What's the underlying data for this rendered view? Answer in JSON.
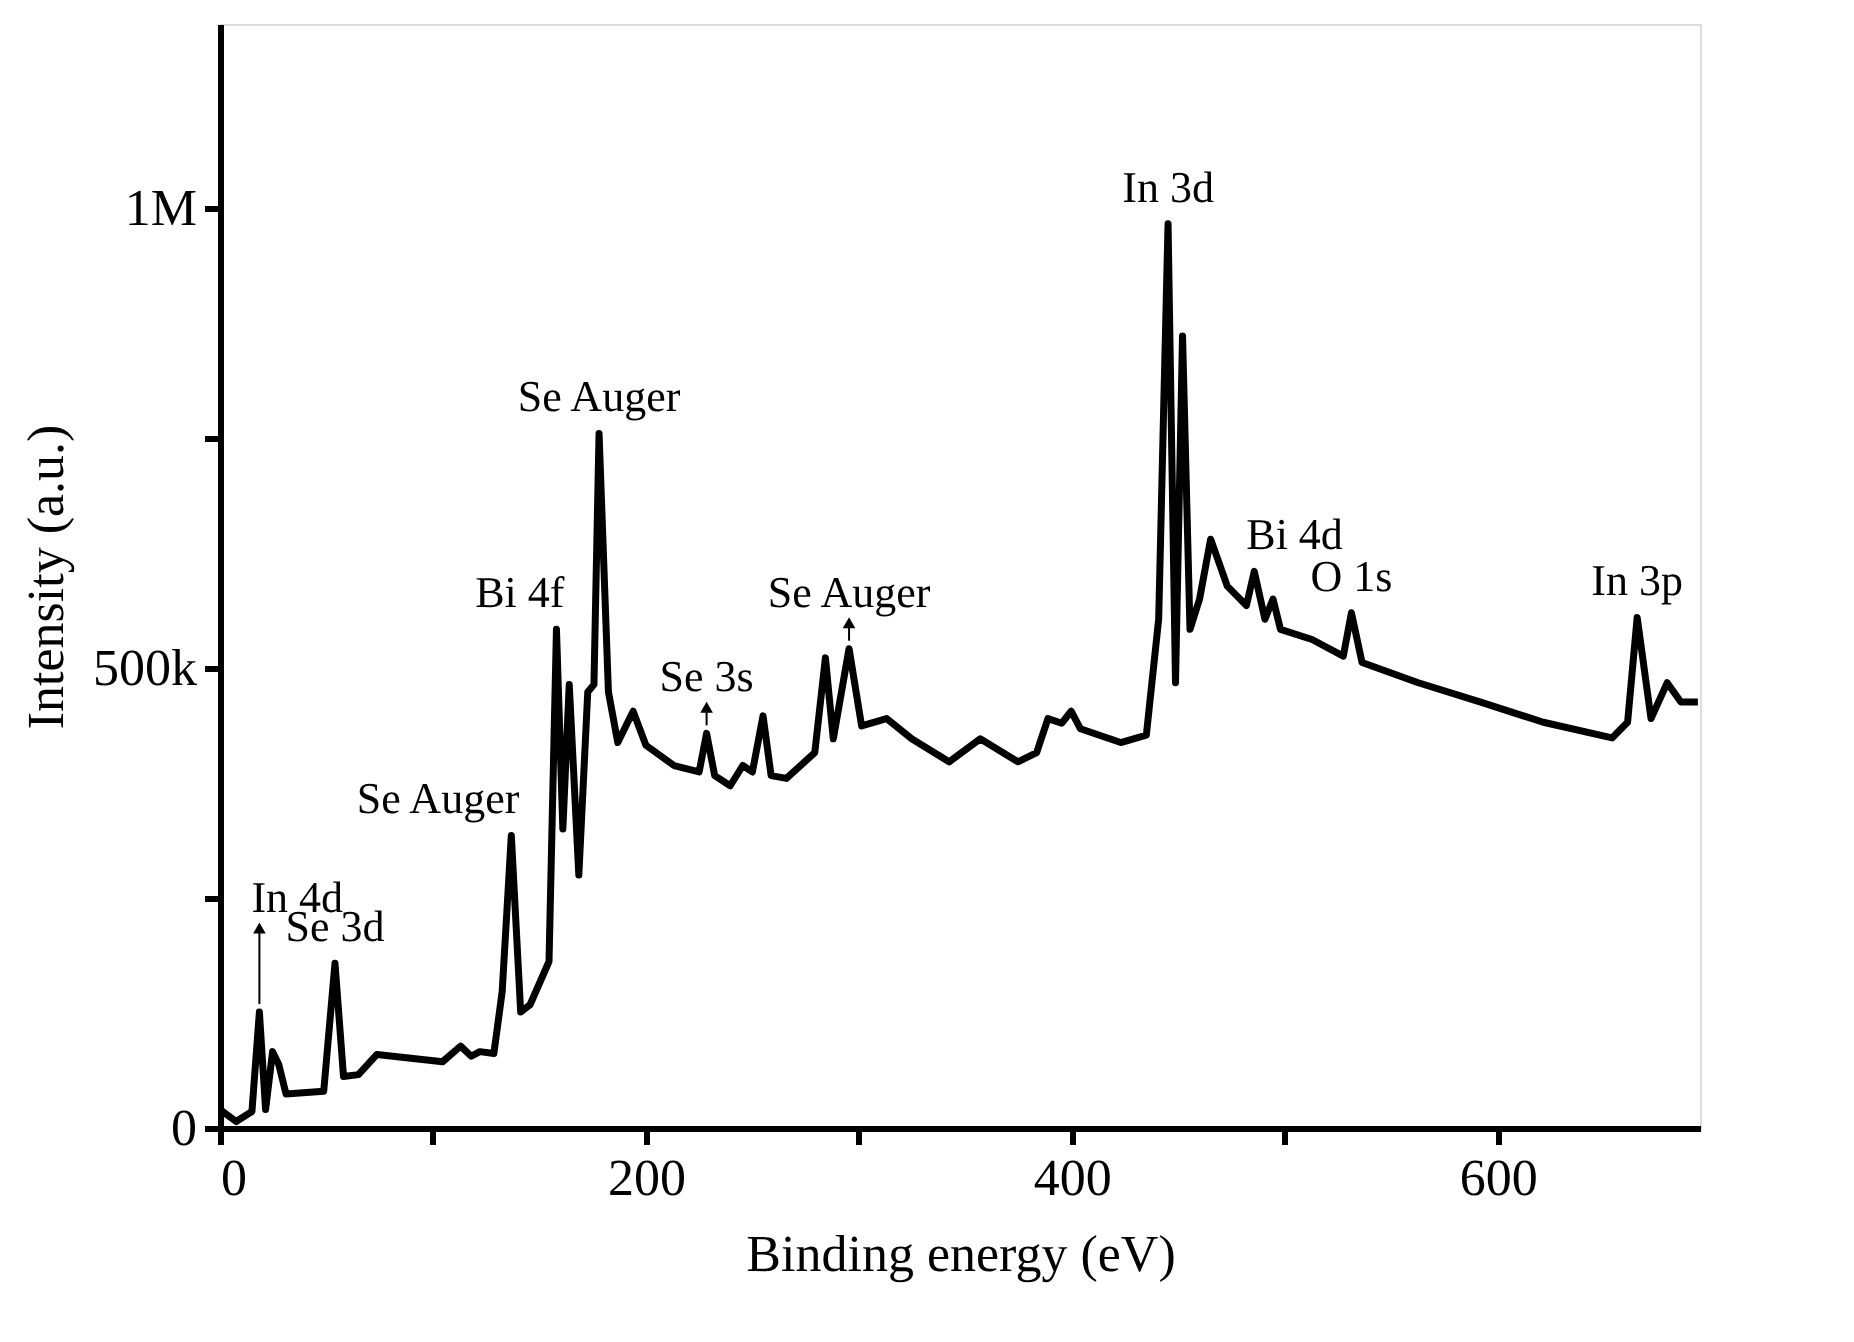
{
  "chart_data": {
    "type": "line",
    "xlabel": "Binding energy (eV)",
    "ylabel": "Intensity (a.u.)",
    "xlim": [
      0,
      695
    ],
    "ylim": [
      0,
      1200000
    ],
    "xticks": [
      0,
      {
        "value": 100,
        "label": null
      },
      200,
      {
        "value": 300,
        "label": null
      },
      400,
      {
        "value": 500,
        "label": null
      },
      600
    ],
    "yticks": [
      0,
      {
        "value": 250000,
        "label": null
      },
      {
        "value": 500000,
        "label": "500k"
      },
      {
        "value": 750000,
        "label": null
      },
      {
        "value": 1000000,
        "label": "1M"
      }
    ],
    "grid": false,
    "marker": "none",
    "line_style": "solid",
    "series": [
      {
        "color": "#000000",
        "x": [
          0,
          7.6,
          15,
          18.5,
          21.4,
          24.7,
          27.6,
          31,
          48.7,
          54,
          58,
          65,
          73.7,
          104.5,
          113,
          118,
          122,
          128.6,
          132.5,
          136.8,
          141.2,
          145.6,
          154.5,
          158,
          161,
          164,
          168.5,
          172.7,
          175.6,
          178,
          182.4,
          186.8,
          194,
          200,
          213.2,
          225,
          228.5,
          232.3,
          239.6,
          245.5,
          250,
          255,
          258.8,
          266,
          279.3,
          284.3,
          288,
          295.4,
          301.3,
          313,
          324.8,
          342.4,
          357,
          374.7,
          383.5,
          388.8,
          395.3,
          399.7,
          404,
          423,
          435,
          440.8,
          445.2,
          448.7,
          452,
          455.5,
          460,
          465.2,
          473,
          482,
          485.7,
          490.7,
          494.5,
          498,
          512.8,
          527.5,
          531.3,
          536.3,
          562.7,
          592,
          621.4,
          653.7,
          661,
          665.5,
          672,
          679.6,
          686,
          694
        ],
        "values": [
          20000,
          7000,
          18000,
          126000,
          20000,
          83000,
          69000,
          37000,
          40000,
          179000,
          56000,
          58000,
          80000,
          72000,
          89000,
          78000,
          83000,
          81000,
          148000,
          318000,
          126000,
          134000,
          181000,
          542000,
          325000,
          482000,
          275000,
          474000,
          482000,
          755000,
          474000,
          419000,
          453000,
          416000,
          394000,
          387000,
          429000,
          383000,
          372000,
          394000,
          387000,
          448000,
          383000,
          380000,
          408000,
          511000,
          423000,
          521000,
          437000,
          445000,
          423000,
          398000,
          423000,
          398000,
          408000,
          445000,
          440000,
          453000,
          434000,
          419000,
          427000,
          553000,
          983000,
          484000,
          861000,
          542000,
          575000,
          640000,
          589000,
          568000,
          605000,
          553000,
          575000,
          542000,
          531000,
          513000,
          560000,
          506000,
          484000,
          463000,
          441000,
          424000,
          441000,
          555000,
          445000,
          484000,
          463000,
          463000
        ]
      }
    ],
    "annotations": [
      {
        "text": "In 4d",
        "x": 18.5,
        "y": 126000
      },
      {
        "text": "Se 3d",
        "x": 54,
        "y": 179000
      },
      {
        "text": "Se Auger",
        "x": 136.8,
        "y": 318000
      },
      {
        "text": "Bi 4f",
        "x": 158,
        "y": 542000
      },
      {
        "text": "Se Auger",
        "x": 178,
        "y": 755000
      },
      {
        "text": "Se 3s",
        "x": 228.5,
        "y": 429000
      },
      {
        "text": "Se Auger",
        "x": 295.4,
        "y": 521000
      },
      {
        "text": "In 3d",
        "x": 445.2,
        "y": 983000
      },
      {
        "text": "Bi 4d",
        "x": 485.7,
        "y": 605000
      },
      {
        "text": "O 1s",
        "x": 531.3,
        "y": 560000
      },
      {
        "text": "In 3p",
        "x": 665.5,
        "y": 555000
      }
    ]
  }
}
